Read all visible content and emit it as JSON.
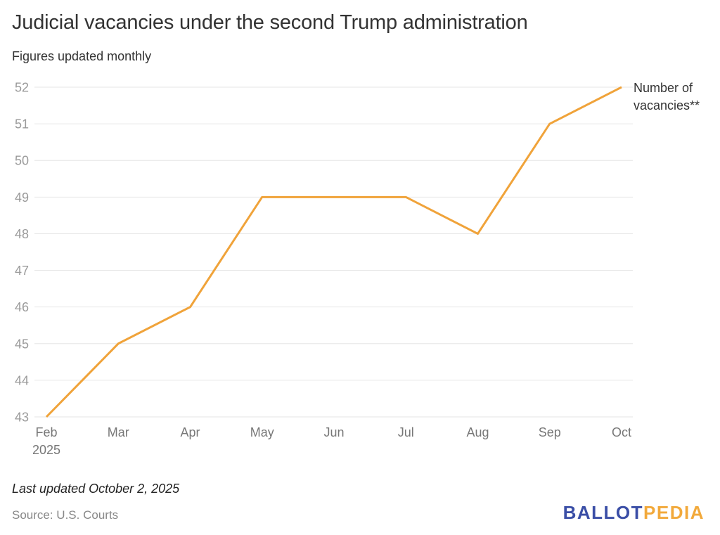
{
  "header": {
    "title": "Judicial vacancies under the second Trump administration",
    "subtitle": "Figures updated monthly"
  },
  "footer": {
    "updated": "Last updated October 2, 2025",
    "source": "Source: U.S. Courts",
    "logo_part1": "BALLOT",
    "logo_part2": "PEDIA"
  },
  "colors": {
    "line": "#f0a33a",
    "grid": "#e6e6e6",
    "logo_blue": "#3a4ea6",
    "logo_orange": "#f2a93b"
  },
  "chart_data": {
    "type": "line",
    "title": "Judicial vacancies under the second Trump administration",
    "subtitle": "Figures updated monthly",
    "categories": [
      "Feb",
      "Mar",
      "Apr",
      "May",
      "Jun",
      "Jul",
      "Aug",
      "Sep",
      "Oct"
    ],
    "category_sublabels": [
      "2025",
      "",
      "",
      "",
      "",
      "",
      "",
      "",
      ""
    ],
    "series": [
      {
        "name": "Number of vacancies**",
        "values": [
          43,
          45,
          46,
          49,
          49,
          49,
          48,
          51,
          52
        ]
      }
    ],
    "yticks": [
      43,
      44,
      45,
      46,
      47,
      48,
      49,
      50,
      51,
      52
    ],
    "ylim": [
      43,
      52
    ],
    "xlabel": "",
    "ylabel": "",
    "grid": true,
    "legend": "inline-end-label"
  }
}
